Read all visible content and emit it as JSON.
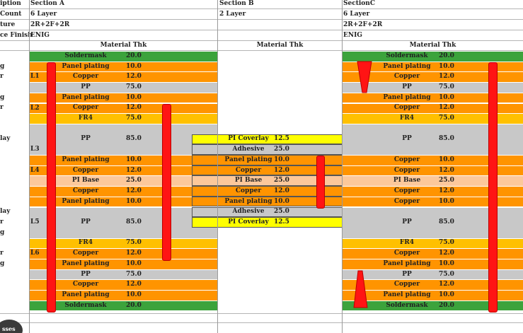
{
  "header": {
    "labels": [
      "iption",
      "Count",
      "ture",
      "ce Finish"
    ],
    "sections": [
      {
        "name": "Section A",
        "layers": "6 Layer",
        "structure": "2R+2F+2R",
        "finish": "ENIG"
      },
      {
        "name": "Section B",
        "layers": "2 Layer",
        "structure": "",
        "finish": ""
      },
      {
        "name": "SectionC",
        "layers": "6 Layer",
        "structure": "2R+2F+2R",
        "finish": "ENIG"
      }
    ]
  },
  "col_header": {
    "a": "Material Thk",
    "b": "Material Thk",
    "c": "Material Thk"
  },
  "left_labels": [
    {
      "row": 1,
      "text": "g"
    },
    {
      "row": 2,
      "text": "r"
    },
    {
      "row": 4,
      "text": "g"
    },
    {
      "row": 5,
      "text": "r"
    },
    {
      "row": 7,
      "text": "lay"
    },
    {
      "row": 14,
      "text": "lay"
    },
    {
      "row": 16,
      "text": "r"
    },
    {
      "row": 17,
      "text": "g"
    },
    {
      "row": 19,
      "text": "r"
    },
    {
      "row": 20,
      "text": "g"
    }
  ],
  "layer_labels": [
    {
      "row": 2,
      "text": "L1"
    },
    {
      "row": 5,
      "text": "L2"
    },
    {
      "row": 9,
      "text": "L3"
    },
    {
      "row": 11,
      "text": "L4"
    },
    {
      "row": 16,
      "text": "L5"
    },
    {
      "row": 19,
      "text": "L6"
    }
  ],
  "section_a": [
    {
      "row": 0,
      "material": "Soldermask",
      "thk": "20.0",
      "color": "#3ca33c"
    },
    {
      "row": 1,
      "material": "Panel plating",
      "thk": "10.0",
      "color": "#ff9400"
    },
    {
      "row": 2,
      "material": "Copper",
      "thk": "12.0",
      "color": "#ff9400"
    },
    {
      "row": 3,
      "material": "PP",
      "thk": "75.0",
      "color": "#c8c8c8"
    },
    {
      "row": 4,
      "material": "Panel plating",
      "thk": "10.0",
      "color": "#ff9400"
    },
    {
      "row": 5,
      "material": "Copper",
      "thk": "12.0",
      "color": "#ff9400"
    },
    {
      "row": 6,
      "material": "FR4",
      "thk": "75.0",
      "color": "#ffc000"
    },
    {
      "row": 7,
      "material": "PP",
      "thk": "85.0",
      "color": "#c8c8c8",
      "span": 3
    },
    {
      "row": 10,
      "material": "Panel plating",
      "thk": "10.0",
      "color": "#ff9400"
    },
    {
      "row": 11,
      "material": "Copper",
      "thk": "12.0",
      "color": "#ff9400"
    },
    {
      "row": 12,
      "material": "PI Base",
      "thk": "25.0",
      "color": "#fcc89b"
    },
    {
      "row": 13,
      "material": "Copper",
      "thk": "12.0",
      "color": "#ff9400"
    },
    {
      "row": 14,
      "material": "Panel plating",
      "thk": "10.0",
      "color": "#ff9400"
    },
    {
      "row": 15,
      "material": "PP",
      "thk": "85.0",
      "color": "#c8c8c8",
      "span": 3
    },
    {
      "row": 18,
      "material": "FR4",
      "thk": "75.0",
      "color": "#ffc000"
    },
    {
      "row": 19,
      "material": "Copper",
      "thk": "12.0",
      "color": "#ff9400"
    },
    {
      "row": 20,
      "material": "Panel plating",
      "thk": "10.0",
      "color": "#ff9400"
    },
    {
      "row": 21,
      "material": "PP",
      "thk": "75.0",
      "color": "#c8c8c8"
    },
    {
      "row": 22,
      "material": "Copper",
      "thk": "12.0",
      "color": "#ff9400"
    },
    {
      "row": 23,
      "material": "Panel plating",
      "thk": "10.0",
      "color": "#ff9400"
    },
    {
      "row": 24,
      "material": "Soldermask",
      "thk": "20.0",
      "color": "#3ca33c"
    }
  ],
  "section_b": [
    {
      "row": 8,
      "material": "PI Coverlay",
      "thk": "12.5",
      "color": "#ffff00"
    },
    {
      "row": 9,
      "material": "Adhesive",
      "thk": "25.0",
      "color": "#c8c8c8"
    },
    {
      "row": 10,
      "material": "Panel plating",
      "thk": "10.0",
      "color": "#ff9400"
    },
    {
      "row": 11,
      "material": "Copper",
      "thk": "12.0",
      "color": "#ff9400"
    },
    {
      "row": 12,
      "material": "PI Base",
      "thk": "25.0",
      "color": "#fcc89b"
    },
    {
      "row": 13,
      "material": "Copper",
      "thk": "12.0",
      "color": "#ff9400"
    },
    {
      "row": 14,
      "material": "Panel plating",
      "thk": "10.0",
      "color": "#ff9400"
    },
    {
      "row": 15,
      "material": "Adhesive",
      "thk": "25.0",
      "color": "#c8c8c8"
    },
    {
      "row": 16,
      "material": "PI Coverlay",
      "thk": "12.5",
      "color": "#ffff00"
    }
  ],
  "section_c": [
    {
      "row": 0,
      "material": "Soldermask",
      "thk": "20.0",
      "color": "#3ca33c"
    },
    {
      "row": 1,
      "material": "Panel plating",
      "thk": "10.0",
      "color": "#ff9400"
    },
    {
      "row": 2,
      "material": "Copper",
      "thk": "12.0",
      "color": "#ff9400"
    },
    {
      "row": 3,
      "material": "PP",
      "thk": "75.0",
      "color": "#c8c8c8"
    },
    {
      "row": 4,
      "material": "Panel plating",
      "thk": "10.0",
      "color": "#ff9400"
    },
    {
      "row": 5,
      "material": "Copper",
      "thk": "12.0",
      "color": "#ff9400"
    },
    {
      "row": 6,
      "material": "FR4",
      "thk": "75.0",
      "color": "#ffc000"
    },
    {
      "row": 7,
      "material": "PP",
      "thk": "85.0",
      "color": "#c8c8c8",
      "span": 3
    },
    {
      "row": 10,
      "material": "Copper",
      "thk": "10.0",
      "color": "#ff9400"
    },
    {
      "row": 11,
      "material": "Copper",
      "thk": "12.0",
      "color": "#ff9400"
    },
    {
      "row": 12,
      "material": "PI Base",
      "thk": "25.0",
      "color": "#fcc89b"
    },
    {
      "row": 13,
      "material": "Copper",
      "thk": "12.0",
      "color": "#ff9400"
    },
    {
      "row": 14,
      "material": "Copper",
      "thk": "10.0",
      "color": "#ff9400"
    },
    {
      "row": 15,
      "material": "PP",
      "thk": "85.0",
      "color": "#c8c8c8",
      "span": 3
    },
    {
      "row": 18,
      "material": "FR4",
      "thk": "75.0",
      "color": "#ffc000"
    },
    {
      "row": 19,
      "material": "Copper",
      "thk": "12.0",
      "color": "#ff9400"
    },
    {
      "row": 20,
      "material": "Panel plating",
      "thk": "10.0",
      "color": "#ff9400"
    },
    {
      "row": 21,
      "material": "PP",
      "thk": "75.0",
      "color": "#c8c8c8"
    },
    {
      "row": 22,
      "material": "Copper",
      "thk": "12.0",
      "color": "#ff9400"
    },
    {
      "row": 23,
      "material": "Panel plating",
      "thk": "10.0",
      "color": "#ff9400"
    },
    {
      "row": 24,
      "material": "Soldermask",
      "thk": "20.0",
      "color": "#3ca33c"
    }
  ],
  "footer": {
    "badge_text": "sses"
  }
}
